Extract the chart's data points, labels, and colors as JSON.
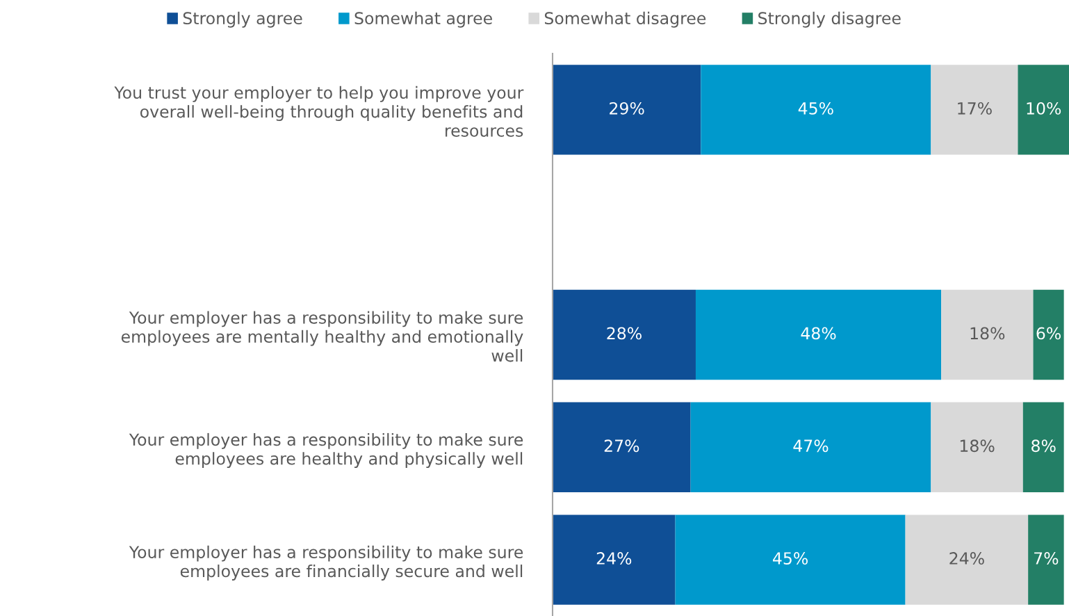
{
  "chart_data": {
    "type": "bar",
    "orientation": "horizontal",
    "stacked": true,
    "data_labels": true,
    "legend": "top",
    "grid": false,
    "tick_labels": "y",
    "categories": [
      "You trust your employer to help you improve your\noverall well-being through quality benefits and\nresources",
      null,
      "Your employer has a responsibility to make sure\nemployees are mentally healthy and emotionally\nwell",
      "Your employer has a responsibility to make sure\nemployees are healthy and physically well",
      "Your employer has a responsibility to make sure\nemployees are financially secure and well"
    ],
    "series": [
      {
        "name": "Strongly agree",
        "color": "#0f4f96",
        "values": [
          29,
          null,
          28,
          27,
          24
        ],
        "value_labels": [
          "29%",
          null,
          "28%",
          "27%",
          "24%"
        ]
      },
      {
        "name": "Somewhat agree",
        "color": "#0099cc",
        "values": [
          45,
          null,
          48,
          47,
          45
        ],
        "value_labels": [
          "45%",
          null,
          "48%",
          "47%",
          "45%"
        ]
      },
      {
        "name": "Somewhat disagree",
        "color": "#d9d9d9",
        "values": [
          17,
          null,
          18,
          18,
          24
        ],
        "value_labels": [
          "17%",
          null,
          "18%",
          "18%",
          "24%"
        ]
      },
      {
        "name": "Strongly disagree",
        "color": "#237f66",
        "values": [
          10,
          null,
          6,
          8,
          7
        ],
        "value_labels": [
          "10%",
          null,
          "6%",
          "8%",
          "7%"
        ]
      }
    ]
  }
}
